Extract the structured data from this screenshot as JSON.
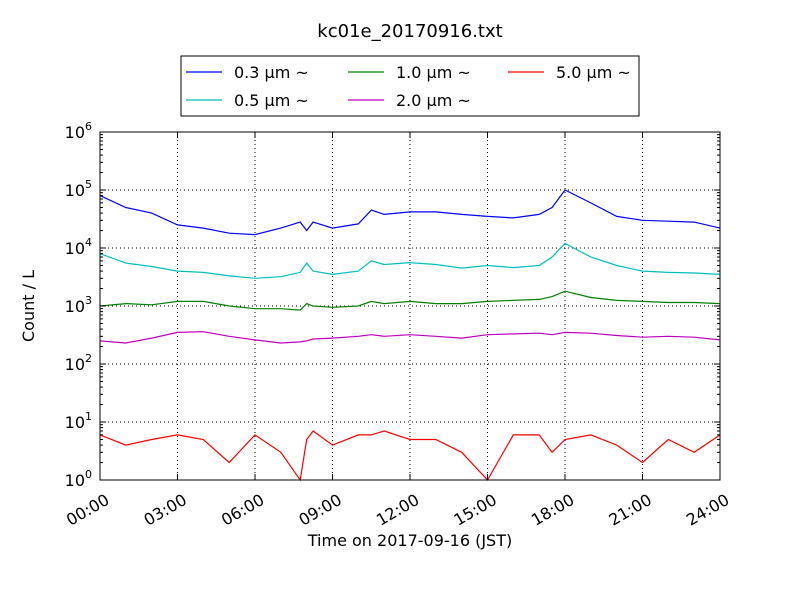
{
  "chart_data": {
    "type": "line",
    "title": "kc01e_20170916.txt",
    "xlabel": "Time on 2017-09-16 (JST)",
    "ylabel": "Count / L",
    "yscale": "log",
    "ylim": [
      1,
      1000000
    ],
    "xlim": [
      "00:00",
      "24:00"
    ],
    "grid": true,
    "legend_position": "top-center",
    "x_tick_labels": [
      "00:00",
      "03:00",
      "06:00",
      "09:00",
      "12:00",
      "15:00",
      "18:00",
      "21:00",
      "24:00"
    ],
    "y_tick_labels": [
      {
        "base": "10",
        "exp": "0"
      },
      {
        "base": "10",
        "exp": "1"
      },
      {
        "base": "10",
        "exp": "2"
      },
      {
        "base": "10",
        "exp": "3"
      },
      {
        "base": "10",
        "exp": "4"
      },
      {
        "base": "10",
        "exp": "5"
      },
      {
        "base": "10",
        "exp": "6"
      }
    ],
    "x": [
      "00:00",
      "01:00",
      "02:00",
      "03:00",
      "04:00",
      "05:00",
      "06:00",
      "07:00",
      "07:45",
      "08:00",
      "08:15",
      "09:00",
      "10:00",
      "10:30",
      "11:00",
      "12:00",
      "13:00",
      "14:00",
      "15:00",
      "16:00",
      "17:00",
      "17:30",
      "18:00",
      "19:00",
      "20:00",
      "21:00",
      "22:00",
      "23:00",
      "24:00"
    ],
    "series": [
      {
        "name": "0.3 μm ~",
        "color": "#0000ff",
        "values": [
          80000,
          50000,
          40000,
          25000,
          22000,
          18000,
          17000,
          22000,
          28000,
          20000,
          28000,
          22000,
          26000,
          45000,
          38000,
          42000,
          42000,
          38000,
          35000,
          33000,
          38000,
          50000,
          100000,
          60000,
          35000,
          30000,
          29000,
          28000,
          22000
        ]
      },
      {
        "name": "0.5 μm ~",
        "color": "#00bfbf",
        "values": [
          8000,
          5500,
          4800,
          4000,
          3800,
          3300,
          3000,
          3200,
          3800,
          5500,
          4000,
          3500,
          4000,
          6000,
          5200,
          5600,
          5200,
          4500,
          5000,
          4600,
          5000,
          7000,
          12000,
          7000,
          5000,
          4000,
          3800,
          3700,
          3500
        ]
      },
      {
        "name": "1.0 μm ~",
        "color": "#008000",
        "values": [
          1000,
          1100,
          1050,
          1200,
          1200,
          1000,
          900,
          900,
          850,
          1100,
          1000,
          950,
          1000,
          1200,
          1100,
          1200,
          1100,
          1100,
          1200,
          1250,
          1300,
          1450,
          1800,
          1400,
          1250,
          1200,
          1150,
          1150,
          1100
        ]
      },
      {
        "name": "2.0 μm ~",
        "color": "#bf00bf",
        "values": [
          250,
          230,
          280,
          350,
          360,
          300,
          260,
          230,
          240,
          250,
          270,
          280,
          300,
          320,
          300,
          320,
          300,
          280,
          320,
          330,
          340,
          320,
          350,
          340,
          310,
          290,
          300,
          290,
          260
        ]
      },
      {
        "name": "5.0 μm ~",
        "color": "#ff0000",
        "values": [
          6,
          4,
          5,
          6,
          5,
          2,
          6,
          3,
          1,
          5,
          7,
          4,
          6,
          6,
          7,
          5,
          5,
          3,
          1,
          6,
          6,
          3,
          5,
          6,
          4,
          2,
          5,
          3,
          6
        ]
      }
    ]
  }
}
